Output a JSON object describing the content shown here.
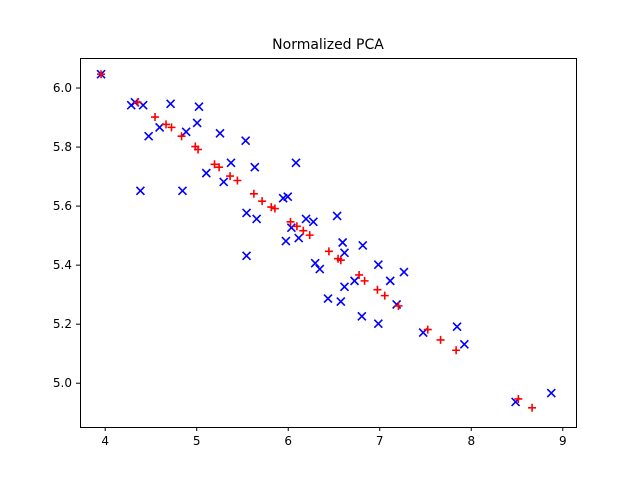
{
  "chart_data": {
    "type": "scatter",
    "title": "Normalized PCA",
    "xlabel": "",
    "ylabel": "",
    "xlim": [
      3.73,
      9.15
    ],
    "ylim": [
      4.85,
      6.1
    ],
    "xticks": [
      4,
      5,
      6,
      7,
      8,
      9
    ],
    "yticks": [
      5.0,
      5.2,
      5.4,
      5.6,
      5.8,
      6.0
    ],
    "xtick_labels": [
      "4",
      "5",
      "6",
      "7",
      "8",
      "9"
    ],
    "ytick_labels": [
      "5.0",
      "5.2",
      "5.4",
      "5.6",
      "5.8",
      "6.0"
    ],
    "grid": false,
    "legend": "none",
    "series": [
      {
        "marker": "x",
        "color": "#0000ff",
        "points": [
          [
            3.96,
            6.045
          ],
          [
            4.29,
            5.94
          ],
          [
            4.33,
            5.95
          ],
          [
            4.42,
            5.94
          ],
          [
            4.72,
            5.945
          ],
          [
            4.6,
            5.865
          ],
          [
            4.48,
            5.835
          ],
          [
            4.89,
            5.85
          ],
          [
            5.01,
            5.88
          ],
          [
            5.03,
            5.935
          ],
          [
            5.26,
            5.845
          ],
          [
            5.54,
            5.82
          ],
          [
            5.64,
            5.73
          ],
          [
            5.38,
            5.745
          ],
          [
            5.11,
            5.71
          ],
          [
            5.3,
            5.68
          ],
          [
            4.39,
            5.65
          ],
          [
            4.85,
            5.65
          ],
          [
            6.09,
            5.745
          ],
          [
            5.95,
            5.625
          ],
          [
            6.0,
            5.63
          ],
          [
            5.55,
            5.575
          ],
          [
            5.66,
            5.555
          ],
          [
            6.2,
            5.555
          ],
          [
            6.28,
            5.545
          ],
          [
            6.54,
            5.565
          ],
          [
            5.98,
            5.48
          ],
          [
            6.04,
            5.525
          ],
          [
            6.12,
            5.49
          ],
          [
            6.6,
            5.475
          ],
          [
            6.62,
            5.44
          ],
          [
            6.3,
            5.405
          ],
          [
            6.35,
            5.385
          ],
          [
            6.82,
            5.465
          ],
          [
            5.55,
            5.43
          ],
          [
            6.99,
            5.4
          ],
          [
            7.27,
            5.375
          ],
          [
            6.73,
            5.345
          ],
          [
            6.62,
            5.325
          ],
          [
            7.12,
            5.345
          ],
          [
            6.44,
            5.285
          ],
          [
            6.58,
            5.275
          ],
          [
            7.19,
            5.265
          ],
          [
            6.81,
            5.225
          ],
          [
            6.99,
            5.2
          ],
          [
            7.48,
            5.17
          ],
          [
            7.85,
            5.19
          ],
          [
            7.93,
            5.13
          ],
          [
            8.49,
            4.935
          ],
          [
            8.88,
            4.965
          ]
        ]
      },
      {
        "marker": "+",
        "color": "#ff0000",
        "points": [
          [
            3.96,
            6.045
          ],
          [
            4.36,
            5.95
          ],
          [
            4.55,
            5.9
          ],
          [
            4.67,
            5.875
          ],
          [
            4.73,
            5.865
          ],
          [
            4.84,
            5.835
          ],
          [
            4.99,
            5.8
          ],
          [
            5.02,
            5.79
          ],
          [
            5.2,
            5.74
          ],
          [
            5.25,
            5.73
          ],
          [
            5.37,
            5.7
          ],
          [
            5.45,
            5.685
          ],
          [
            5.63,
            5.64
          ],
          [
            5.72,
            5.615
          ],
          [
            5.82,
            5.595
          ],
          [
            5.86,
            5.59
          ],
          [
            6.03,
            5.545
          ],
          [
            6.1,
            5.53
          ],
          [
            6.17,
            5.515
          ],
          [
            6.24,
            5.5
          ],
          [
            6.45,
            5.445
          ],
          [
            6.55,
            5.42
          ],
          [
            6.58,
            5.415
          ],
          [
            6.78,
            5.365
          ],
          [
            6.84,
            5.345
          ],
          [
            6.98,
            5.315
          ],
          [
            7.06,
            5.295
          ],
          [
            7.21,
            5.26
          ],
          [
            7.53,
            5.18
          ],
          [
            7.67,
            5.145
          ],
          [
            7.84,
            5.11
          ],
          [
            8.52,
            4.945
          ],
          [
            8.67,
            4.915
          ]
        ]
      }
    ]
  }
}
